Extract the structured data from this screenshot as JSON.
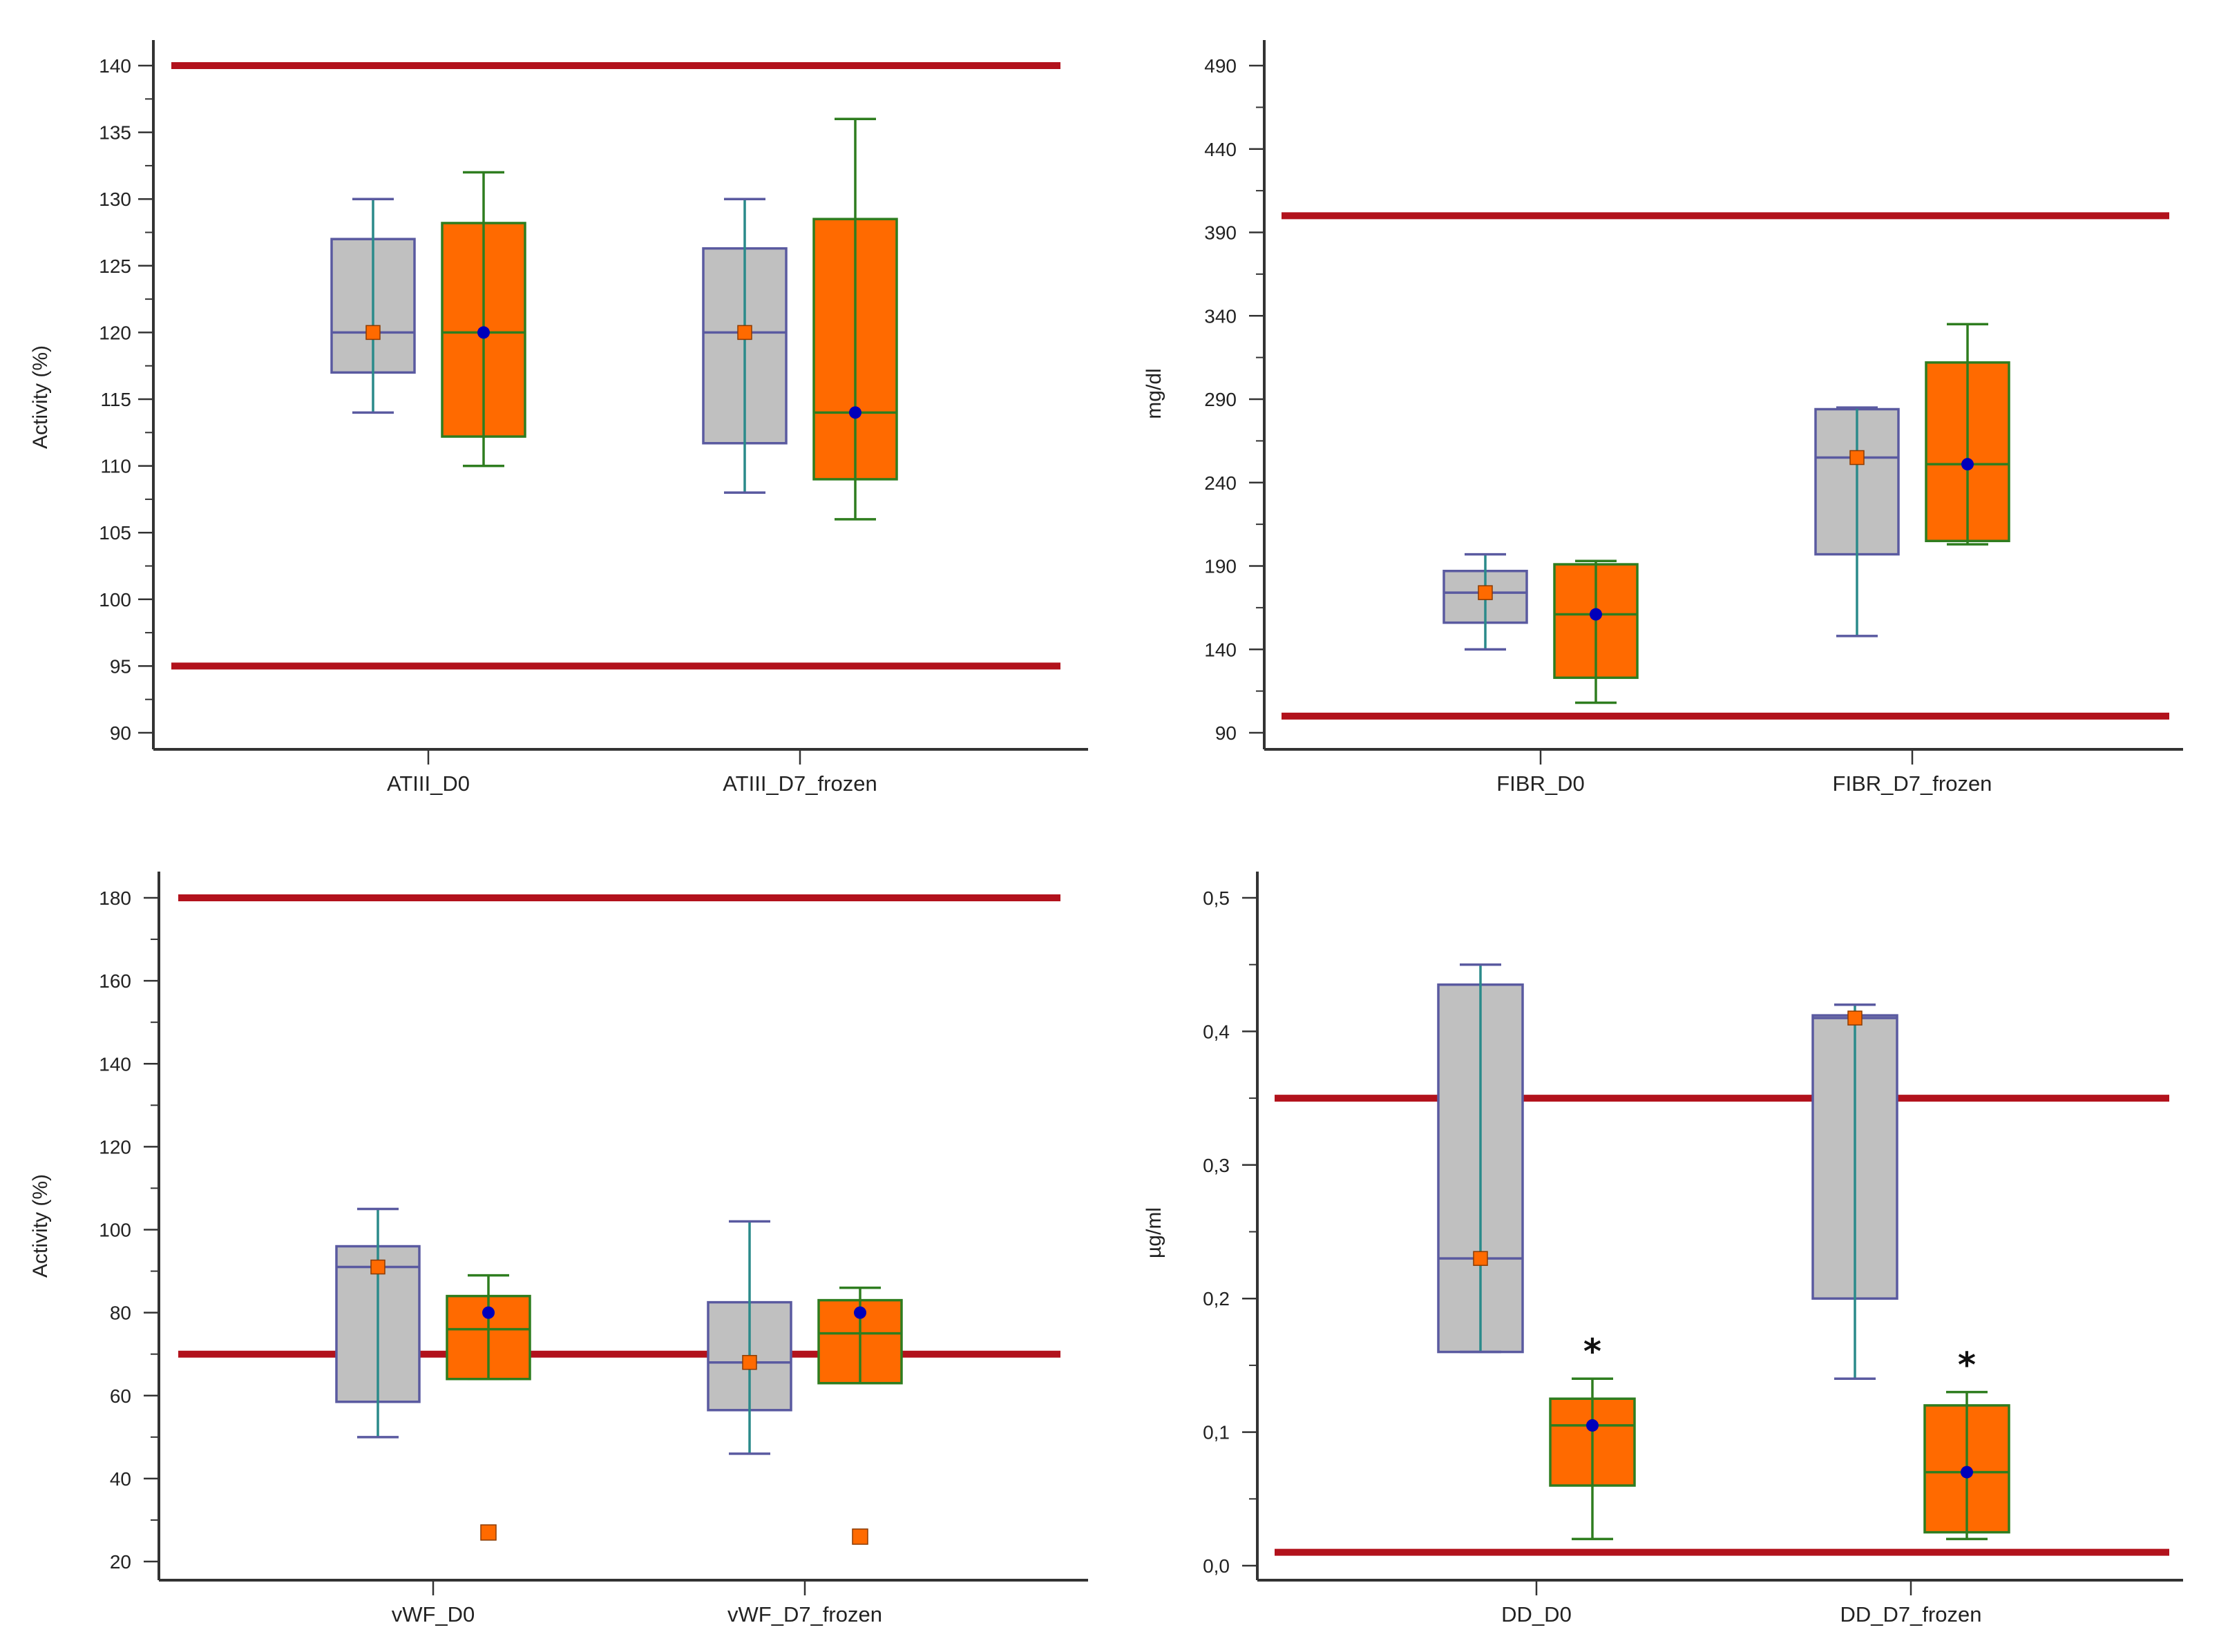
{
  "colors": {
    "ref_line": "#b2121c",
    "gray_fill": "#c0c0c0",
    "gray_stroke": "#5a5aa0",
    "orange_fill": "#ff6a00",
    "orange_stroke": "#2e7d1f",
    "whisker_mid": "#2a8a8a",
    "mean_gray": "#ff6a00",
    "mean_orange": "#0000bb",
    "axis": "#333333"
  },
  "chart_data": [
    {
      "id": "atiii",
      "type": "boxplot",
      "ylabel": "Activity (%)",
      "ylim": [
        90,
        140
      ],
      "yticks": [
        90,
        95,
        100,
        105,
        110,
        115,
        120,
        125,
        130,
        135,
        140
      ],
      "ytick_labels": [
        "90",
        "95",
        "100",
        "105",
        "110",
        "115",
        "120",
        "125",
        "130",
        "135",
        "140"
      ],
      "ref_lines": [
        95,
        140
      ],
      "categories": [
        "ATIII_D0",
        "ATIII_D7_frozen"
      ],
      "boxes": [
        {
          "group": 0,
          "series": "gray",
          "whisker_low": 114,
          "q1": 117,
          "median": 120,
          "q3": 127,
          "whisker_high": 130,
          "mean": 120,
          "outliers": []
        },
        {
          "group": 0,
          "series": "orange",
          "whisker_low": 110,
          "q1": 112.2,
          "median": 120,
          "q3": 128.2,
          "whisker_high": 132,
          "mean": 120,
          "outliers": []
        },
        {
          "group": 1,
          "series": "gray",
          "whisker_low": 108,
          "q1": 111.7,
          "median": 120,
          "q3": 126.3,
          "whisker_high": 130,
          "mean": 120,
          "outliers": []
        },
        {
          "group": 1,
          "series": "orange",
          "whisker_low": 106,
          "q1": 109,
          "median": 114,
          "q3": 128.5,
          "whisker_high": 136,
          "mean": 114,
          "outliers": []
        }
      ],
      "annotations": []
    },
    {
      "id": "fibr",
      "type": "boxplot",
      "ylabel": "mg/dl",
      "ylim": [
        90,
        490
      ],
      "yticks": [
        90,
        140,
        190,
        240,
        290,
        340,
        390,
        440,
        490
      ],
      "ytick_labels": [
        "90",
        "140",
        "190",
        "240",
        "290",
        "340",
        "390",
        "440",
        "490"
      ],
      "ref_lines": [
        100,
        400
      ],
      "categories": [
        "FIBR_D0",
        "FIBR_D7_frozen"
      ],
      "boxes": [
        {
          "group": 0,
          "series": "gray",
          "whisker_low": 140,
          "q1": 156,
          "median": 174,
          "q3": 187,
          "whisker_high": 197,
          "mean": 174,
          "outliers": []
        },
        {
          "group": 0,
          "series": "orange",
          "whisker_low": 108,
          "q1": 123,
          "median": 161,
          "q3": 191,
          "whisker_high": 193,
          "mean": 161,
          "outliers": []
        },
        {
          "group": 1,
          "series": "gray",
          "whisker_low": 148,
          "q1": 197,
          "median": 255,
          "q3": 284,
          "whisker_high": 285,
          "mean": 255,
          "outliers": []
        },
        {
          "group": 1,
          "series": "orange",
          "whisker_low": 203,
          "q1": 205,
          "median": 251,
          "q3": 312,
          "whisker_high": 335,
          "mean": 251,
          "outliers": []
        }
      ],
      "annotations": []
    },
    {
      "id": "vwf",
      "type": "boxplot",
      "ylabel": "Activity (%)",
      "ylim": [
        20,
        180
      ],
      "yticks": [
        20,
        40,
        60,
        80,
        100,
        120,
        140,
        160,
        180
      ],
      "ytick_labels": [
        "20",
        "40",
        "60",
        "80",
        "100",
        "120",
        "140",
        "160",
        "180"
      ],
      "ref_lines": [
        70,
        180
      ],
      "categories": [
        "vWF_D0",
        "vWF_D7_frozen"
      ],
      "boxes": [
        {
          "group": 0,
          "series": "gray",
          "whisker_low": 50,
          "q1": 58.5,
          "median": 91,
          "q3": 96,
          "whisker_high": 105,
          "mean": 91,
          "outliers": []
        },
        {
          "group": 0,
          "series": "orange",
          "whisker_low": 64,
          "q1": 64,
          "median": 76,
          "q3": 84,
          "whisker_high": 89,
          "mean": 80,
          "outliers": [
            27
          ]
        },
        {
          "group": 1,
          "series": "gray",
          "whisker_low": 46,
          "q1": 56.5,
          "median": 68,
          "q3": 82.5,
          "whisker_high": 102,
          "mean": 68,
          "outliers": []
        },
        {
          "group": 1,
          "series": "orange",
          "whisker_low": 63,
          "q1": 63,
          "median": 75,
          "q3": 83,
          "whisker_high": 86,
          "mean": 80,
          "outliers": [
            26
          ]
        }
      ],
      "annotations": []
    },
    {
      "id": "dd",
      "type": "boxplot",
      "ylabel": "µg/ml",
      "ylim": [
        0.0,
        0.5
      ],
      "yticks": [
        0.0,
        0.1,
        0.2,
        0.3,
        0.4,
        0.5
      ],
      "ytick_labels": [
        "0,0",
        "0,1",
        "0,2",
        "0,3",
        "0,4",
        "0,5"
      ],
      "ref_lines": [
        0.01,
        0.35
      ],
      "categories": [
        "DD_D0",
        "DD_D7_frozen"
      ],
      "boxes": [
        {
          "group": 0,
          "series": "gray",
          "whisker_low": 0.16,
          "q1": 0.16,
          "median": 0.23,
          "q3": 0.435,
          "whisker_high": 0.45,
          "mean": 0.23,
          "outliers": []
        },
        {
          "group": 0,
          "series": "orange",
          "whisker_low": 0.02,
          "q1": 0.06,
          "median": 0.105,
          "q3": 0.125,
          "whisker_high": 0.14,
          "mean": 0.105,
          "outliers": []
        },
        {
          "group": 1,
          "series": "gray",
          "whisker_low": 0.14,
          "q1": 0.2,
          "median": 0.41,
          "q3": 0.412,
          "whisker_high": 0.42,
          "mean": 0.41,
          "outliers": []
        },
        {
          "group": 1,
          "series": "orange",
          "whisker_low": 0.02,
          "q1": 0.025,
          "median": 0.07,
          "q3": 0.12,
          "whisker_high": 0.13,
          "mean": 0.07,
          "outliers": []
        }
      ],
      "annotations": [
        {
          "group": 0,
          "series": "orange",
          "text": "*"
        },
        {
          "group": 1,
          "series": "orange",
          "text": "*"
        }
      ]
    }
  ]
}
